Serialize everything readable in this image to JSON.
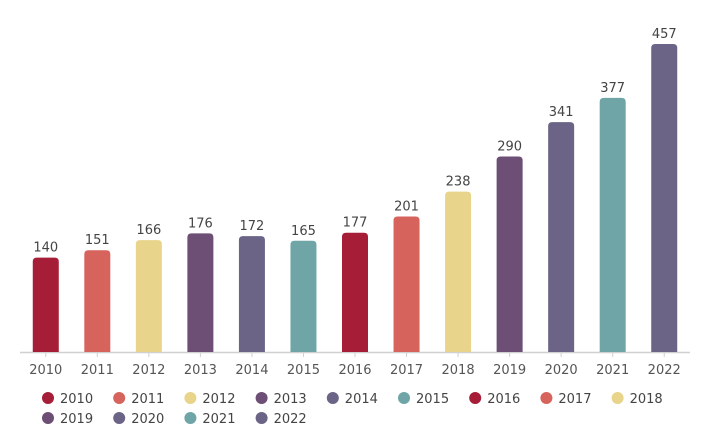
{
  "chart_data": {
    "type": "bar",
    "categories": [
      "2010",
      "2011",
      "2012",
      "2013",
      "2014",
      "2015",
      "2016",
      "2017",
      "2018",
      "2019",
      "2020",
      "2021",
      "2022"
    ],
    "values": [
      140,
      151,
      166,
      176,
      172,
      165,
      177,
      201,
      238,
      290,
      341,
      377,
      457
    ],
    "colors": [
      "#a51d36",
      "#d7635d",
      "#e8d48a",
      "#6d4e74",
      "#6b6487",
      "#6fa5a6",
      "#a51d36",
      "#d7635d",
      "#e8d48a",
      "#6d4e74",
      "#6b6487",
      "#6fa5a6",
      "#6b6487"
    ],
    "legend": [
      "2010",
      "2011",
      "2012",
      "2013",
      "2014",
      "2015",
      "2016",
      "2017",
      "2018",
      "2019",
      "2020",
      "2021",
      "2022"
    ],
    "legend_position": "bottom",
    "ylim": [
      0,
      500
    ],
    "grid": false,
    "title": "",
    "xlabel": "",
    "ylabel": ""
  }
}
